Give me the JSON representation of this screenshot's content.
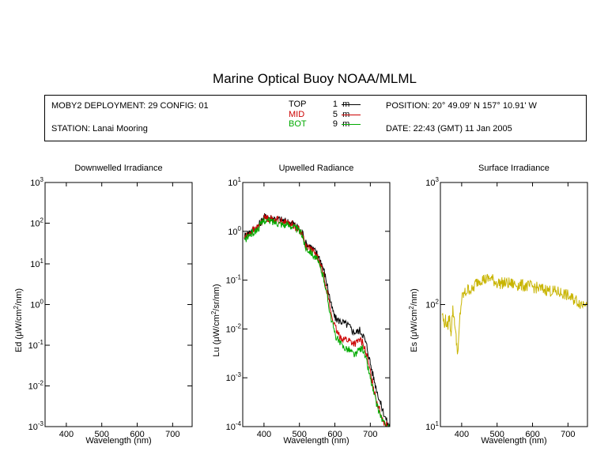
{
  "title": "Marine Optical Buoy NOAA/MLML",
  "header": {
    "deployment": "MOBY2 DEPLOYMENT: 29 CONFIG: 01",
    "station": "STATION: Lanai Mooring",
    "position": "POSITION: 20° 49.09' N   157° 10.91' W",
    "date": "DATE: 22:43 (GMT) 11 Jan 2005",
    "legend": [
      {
        "name": "TOP",
        "depth": "1",
        "unit": "m",
        "color": "#000000"
      },
      {
        "name": "MID",
        "depth": "5",
        "unit": "m",
        "color": "#cc0000"
      },
      {
        "name": "BOT",
        "depth": "9",
        "unit": "m",
        "color": "#00aa00"
      }
    ]
  },
  "chart_data": [
    {
      "type": "line",
      "title": "Downwelled Irradiance",
      "xlabel": "Wavelength (nm)",
      "ylabel_pre": "Ed  (",
      "ylabel_mu": "μ",
      "ylabel_main": "W/cm",
      "ylabel_sup": "2",
      "ylabel_post": "/nm)",
      "xlim": [
        340,
        755
      ],
      "xticks": [
        400,
        500,
        600,
        700
      ],
      "ylim_log10": [
        -3,
        3
      ],
      "yscale": "log",
      "yticks": [
        {
          "base": "10",
          "exp": "3"
        },
        {
          "base": "10",
          "exp": "2"
        },
        {
          "base": "10",
          "exp": "1"
        },
        {
          "base": "10",
          "exp": "0"
        },
        {
          "base": "10",
          "exp": "-1"
        },
        {
          "base": "10",
          "exp": "-2"
        },
        {
          "base": "10",
          "exp": "-3"
        }
      ],
      "series": []
    },
    {
      "type": "line",
      "title": "Upwelled Radiance",
      "xlabel": "Wavelength (nm)",
      "ylabel_pre": "Lu  (",
      "ylabel_mu": "μ",
      "ylabel_main": "W/cm",
      "ylabel_sup": "2",
      "ylabel_post": "/sr/nm)",
      "xlim": [
        340,
        755
      ],
      "xticks": [
        400,
        500,
        600,
        700
      ],
      "ylim_log10": [
        -4,
        1
      ],
      "yscale": "log",
      "yticks": [
        {
          "base": "10",
          "exp": "1"
        },
        {
          "base": "10",
          "exp": "0"
        },
        {
          "base": "10",
          "exp": "-1"
        },
        {
          "base": "10",
          "exp": "-2"
        },
        {
          "base": "10",
          "exp": "-3"
        },
        {
          "base": "10",
          "exp": "-4"
        }
      ],
      "series": [
        {
          "name": "TOP",
          "color": "#000000",
          "jitter": 0.08,
          "x": [
            345,
            360,
            380,
            395,
            400,
            420,
            440,
            460,
            480,
            500,
            510,
            515,
            520,
            530,
            550,
            560,
            570,
            580,
            590,
            600,
            610,
            620,
            640,
            650,
            660,
            670,
            680,
            690,
            700,
            710,
            720,
            730,
            740,
            750,
            755
          ],
          "y": [
            0.8,
            1.0,
            1.2,
            1.7,
            2.0,
            1.9,
            1.8,
            1.6,
            1.5,
            1.1,
            0.9,
            0.6,
            0.55,
            0.5,
            0.35,
            0.25,
            0.15,
            0.07,
            0.03,
            0.017,
            0.015,
            0.014,
            0.0115,
            0.009,
            0.0085,
            0.0095,
            0.0075,
            0.0045,
            0.002,
            0.00095,
            0.0005,
            0.00028,
            0.00017,
            0.00011,
            0.0001
          ]
        },
        {
          "name": "MID",
          "color": "#cc0000",
          "jitter": 0.08,
          "x": [
            345,
            360,
            380,
            395,
            400,
            420,
            440,
            460,
            480,
            500,
            510,
            515,
            520,
            530,
            550,
            560,
            570,
            580,
            590,
            600,
            610,
            620,
            640,
            650,
            660,
            670,
            680,
            690,
            700,
            710,
            720,
            730,
            740,
            750,
            755
          ],
          "y": [
            0.75,
            0.95,
            1.15,
            1.6,
            1.9,
            1.8,
            1.7,
            1.5,
            1.4,
            1.05,
            0.85,
            0.55,
            0.5,
            0.45,
            0.3,
            0.2,
            0.12,
            0.05,
            0.02,
            0.011,
            0.0075,
            0.0065,
            0.0058,
            0.0052,
            0.005,
            0.006,
            0.005,
            0.0028,
            0.0013,
            0.0006,
            0.0003,
            0.00018,
            0.00012,
            0.0001,
            0.0001
          ]
        },
        {
          "name": "BOT",
          "color": "#00aa00",
          "jitter": 0.08,
          "x": [
            345,
            360,
            380,
            395,
            400,
            420,
            440,
            460,
            480,
            500,
            510,
            515,
            520,
            530,
            550,
            560,
            570,
            580,
            590,
            600,
            610,
            620,
            640,
            650,
            660,
            670,
            680,
            690,
            700,
            710,
            720,
            730,
            740,
            750,
            755
          ],
          "y": [
            0.65,
            0.85,
            1.05,
            1.5,
            1.7,
            1.6,
            1.5,
            1.35,
            1.3,
            1.0,
            0.8,
            0.5,
            0.45,
            0.4,
            0.26,
            0.17,
            0.1,
            0.04,
            0.016,
            0.008,
            0.0055,
            0.0045,
            0.0038,
            0.0032,
            0.0029,
            0.004,
            0.0038,
            0.0021,
            0.001,
            0.00047,
            0.00025,
            0.00016,
            0.00011,
            0.0001,
            0.0001
          ]
        }
      ]
    },
    {
      "type": "line",
      "title": "Surface Irradiance",
      "xlabel": "Wavelength (nm)",
      "ylabel_pre": "Es  (",
      "ylabel_mu": "μ",
      "ylabel_main": "W/cm",
      "ylabel_sup": "2",
      "ylabel_post": "/nm)",
      "xlim": [
        340,
        755
      ],
      "xticks": [
        400,
        500,
        600,
        700
      ],
      "ylim_log10": [
        1,
        3
      ],
      "yscale": "log",
      "yticks": [
        {
          "base": "10",
          "exp": "3"
        },
        {
          "base": "10",
          "exp": "2"
        },
        {
          "base": "10",
          "exp": "1"
        }
      ],
      "series": [
        {
          "name": "Es",
          "color": "#c8b400",
          "jitter": 0.05,
          "x": [
            345,
            350,
            355,
            360,
            365,
            370,
            375,
            380,
            385,
            390,
            395,
            400,
            405,
            410,
            420,
            430,
            440,
            450,
            460,
            470,
            480,
            490,
            500,
            520,
            540,
            560,
            580,
            600,
            620,
            640,
            660,
            680,
            690,
            700,
            710,
            720,
            730,
            740,
            750,
            755
          ],
          "y": [
            85,
            70,
            75,
            65,
            80,
            60,
            90,
            75,
            50,
            40,
            80,
            110,
            120,
            125,
            135,
            130,
            150,
            160,
            162,
            160,
            165,
            158,
            150,
            150,
            148,
            145,
            142,
            140,
            135,
            132,
            128,
            125,
            122,
            118,
            112,
            110,
            105,
            100,
            108,
            110
          ]
        }
      ]
    }
  ]
}
